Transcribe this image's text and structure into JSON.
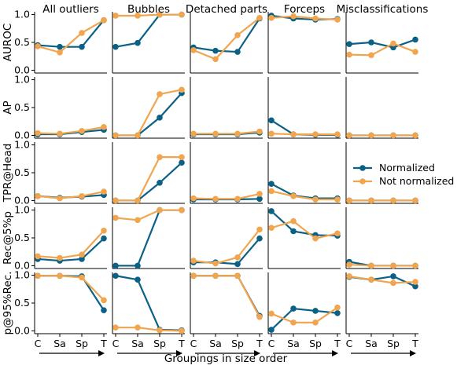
{
  "chart_data": {
    "type": "line",
    "xlabel": "Groupings in size order",
    "x_tick_labels": [
      "C",
      "Sa",
      "Sp",
      "T"
    ],
    "column_titles": [
      "All outliers",
      "Bubbles",
      "Detached parts",
      "Forceps",
      "Misclassifications"
    ],
    "row_labels": [
      "AUROC",
      "AP",
      "TPR@Head",
      "Rec@5%p",
      "p@95%Rec."
    ],
    "y_ticks": [
      0.0,
      0.5,
      1.0
    ],
    "y_tick_labels": [
      "0.0",
      "0.5",
      "1.0"
    ],
    "ylim": [
      -0.05,
      1.05
    ],
    "grid": false,
    "shared_y_per_row": true,
    "legend": {
      "placement": "panel row 3, column 5 (right)",
      "entries": [
        "Normalized",
        "Not normalized"
      ]
    },
    "series_styles": [
      {
        "name": "Normalized",
        "color": "#0b6185"
      },
      {
        "name": "Not normalized",
        "color": "#f0a54e"
      }
    ],
    "panels": [
      [
        {
          "series": [
            {
              "name": "Normalized",
              "values": [
                0.45,
                0.42,
                0.42,
                0.9
              ]
            },
            {
              "name": "Not normalized",
              "values": [
                0.43,
                0.32,
                0.67,
                0.9
              ]
            }
          ]
        },
        {
          "series": [
            {
              "name": "Normalized",
              "values": [
                0.42,
                0.49,
                1.0,
                1.0
              ]
            },
            {
              "name": "Not normalized",
              "values": [
                0.98,
                0.98,
                1.0,
                1.0
              ]
            }
          ]
        },
        {
          "series": [
            {
              "name": "Normalized",
              "values": [
                0.41,
                0.35,
                0.33,
                0.93
              ]
            },
            {
              "name": "Not normalized",
              "values": [
                0.36,
                0.2,
                0.63,
                0.94
              ]
            }
          ]
        },
        {
          "series": [
            {
              "name": "Normalized",
              "values": [
                0.98,
                0.93,
                0.91,
                0.92
              ]
            },
            {
              "name": "Not normalized",
              "values": [
                0.94,
                0.97,
                0.93,
                0.91
              ]
            }
          ]
        },
        {
          "series": [
            {
              "name": "Normalized",
              "values": [
                0.47,
                0.5,
                0.41,
                0.55
              ]
            },
            {
              "name": "Not normalized",
              "values": [
                0.28,
                0.27,
                0.48,
                0.33
              ]
            }
          ]
        }
      ],
      [
        {
          "series": [
            {
              "name": "Normalized",
              "values": [
                0.02,
                0.02,
                0.06,
                0.1
              ]
            },
            {
              "name": "Not normalized",
              "values": [
                0.04,
                0.03,
                0.08,
                0.15
              ]
            }
          ]
        },
        {
          "series": [
            {
              "name": "Normalized",
              "values": [
                0.0,
                0.0,
                0.32,
                0.76
              ]
            },
            {
              "name": "Not normalized",
              "values": [
                0.0,
                0.0,
                0.74,
                0.82
              ]
            }
          ]
        },
        {
          "series": [
            {
              "name": "Normalized",
              "values": [
                0.02,
                0.02,
                0.02,
                0.05
              ]
            },
            {
              "name": "Not normalized",
              "values": [
                0.03,
                0.03,
                0.03,
                0.07
              ]
            }
          ]
        },
        {
          "series": [
            {
              "name": "Normalized",
              "values": [
                0.27,
                0.02,
                0.01,
                0.01
              ]
            },
            {
              "name": "Not normalized",
              "values": [
                0.03,
                0.02,
                0.02,
                0.02
              ]
            }
          ]
        },
        {
          "series": [
            {
              "name": "Normalized",
              "values": [
                0.0,
                0.0,
                0.0,
                0.0
              ]
            },
            {
              "name": "Not normalized",
              "values": [
                0.0,
                0.0,
                0.0,
                0.0
              ]
            }
          ]
        }
      ],
      [
        {
          "series": [
            {
              "name": "Normalized",
              "values": [
                0.08,
                0.05,
                0.07,
                0.1
              ]
            },
            {
              "name": "Not normalized",
              "values": [
                0.08,
                0.04,
                0.08,
                0.16
              ]
            }
          ]
        },
        {
          "series": [
            {
              "name": "Normalized",
              "values": [
                0.0,
                0.0,
                0.32,
                0.68
              ]
            },
            {
              "name": "Not normalized",
              "values": [
                0.0,
                0.0,
                0.78,
                0.78
              ]
            }
          ]
        },
        {
          "series": [
            {
              "name": "Normalized",
              "values": [
                0.02,
                0.02,
                0.02,
                0.03
              ]
            },
            {
              "name": "Not normalized",
              "values": [
                0.04,
                0.03,
                0.03,
                0.12
              ]
            }
          ]
        },
        {
          "series": [
            {
              "name": "Normalized",
              "values": [
                0.3,
                0.09,
                0.04,
                0.04
              ]
            },
            {
              "name": "Not normalized",
              "values": [
                0.17,
                0.08,
                0.02,
                0.02
              ]
            }
          ]
        },
        {
          "series": [
            {
              "name": "Normalized",
              "values": [
                0.0,
                0.0,
                0.0,
                0.0
              ]
            },
            {
              "name": "Not normalized",
              "values": [
                0.0,
                0.0,
                0.0,
                0.0
              ]
            }
          ]
        }
      ],
      [
        {
          "series": [
            {
              "name": "Normalized",
              "values": [
                0.12,
                0.09,
                0.12,
                0.49
              ]
            },
            {
              "name": "Not normalized",
              "values": [
                0.17,
                0.14,
                0.2,
                0.63
              ]
            }
          ]
        },
        {
          "series": [
            {
              "name": "Normalized",
              "values": [
                0.0,
                0.0,
                1.0,
                1.0
              ]
            },
            {
              "name": "Not normalized",
              "values": [
                0.86,
                0.82,
                1.0,
                1.0
              ]
            }
          ]
        },
        {
          "series": [
            {
              "name": "Normalized",
              "values": [
                0.06,
                0.06,
                0.03,
                0.49
              ]
            },
            {
              "name": "Not normalized",
              "values": [
                0.09,
                0.04,
                0.15,
                0.65
              ]
            }
          ]
        },
        {
          "series": [
            {
              "name": "Normalized",
              "values": [
                0.98,
                0.62,
                0.55,
                0.54
              ]
            },
            {
              "name": "Not normalized",
              "values": [
                0.68,
                0.8,
                0.49,
                0.58
              ]
            }
          ]
        },
        {
          "series": [
            {
              "name": "Normalized",
              "values": [
                0.07,
                0.0,
                0.0,
                0.0
              ]
            },
            {
              "name": "Not normalized",
              "values": [
                0.02,
                0.0,
                0.0,
                0.0
              ]
            }
          ]
        }
      ],
      [
        {
          "series": [
            {
              "name": "Normalized",
              "values": [
                0.99,
                0.99,
                0.98,
                0.37
              ]
            },
            {
              "name": "Not normalized",
              "values": [
                0.99,
                0.99,
                0.96,
                0.55
              ]
            }
          ]
        },
        {
          "series": [
            {
              "name": "Normalized",
              "values": [
                0.99,
                0.92,
                0.02,
                0.01
              ]
            },
            {
              "name": "Not normalized",
              "values": [
                0.06,
                0.06,
                0.01,
                0.0
              ]
            }
          ]
        },
        {
          "series": [
            {
              "name": "Normalized",
              "values": [
                0.99,
                0.99,
                0.99,
                0.27
              ]
            },
            {
              "name": "Not normalized",
              "values": [
                0.99,
                0.99,
                0.99,
                0.25
              ]
            }
          ]
        },
        {
          "series": [
            {
              "name": "Normalized",
              "values": [
                0.02,
                0.4,
                0.36,
                0.32
              ]
            },
            {
              "name": "Not normalized",
              "values": [
                0.31,
                0.15,
                0.15,
                0.42
              ]
            }
          ]
        },
        {
          "series": [
            {
              "name": "Normalized",
              "values": [
                0.97,
                0.92,
                0.98,
                0.8
              ]
            },
            {
              "name": "Not normalized",
              "values": [
                0.98,
                0.92,
                0.86,
                0.88
              ]
            }
          ]
        }
      ]
    ]
  }
}
